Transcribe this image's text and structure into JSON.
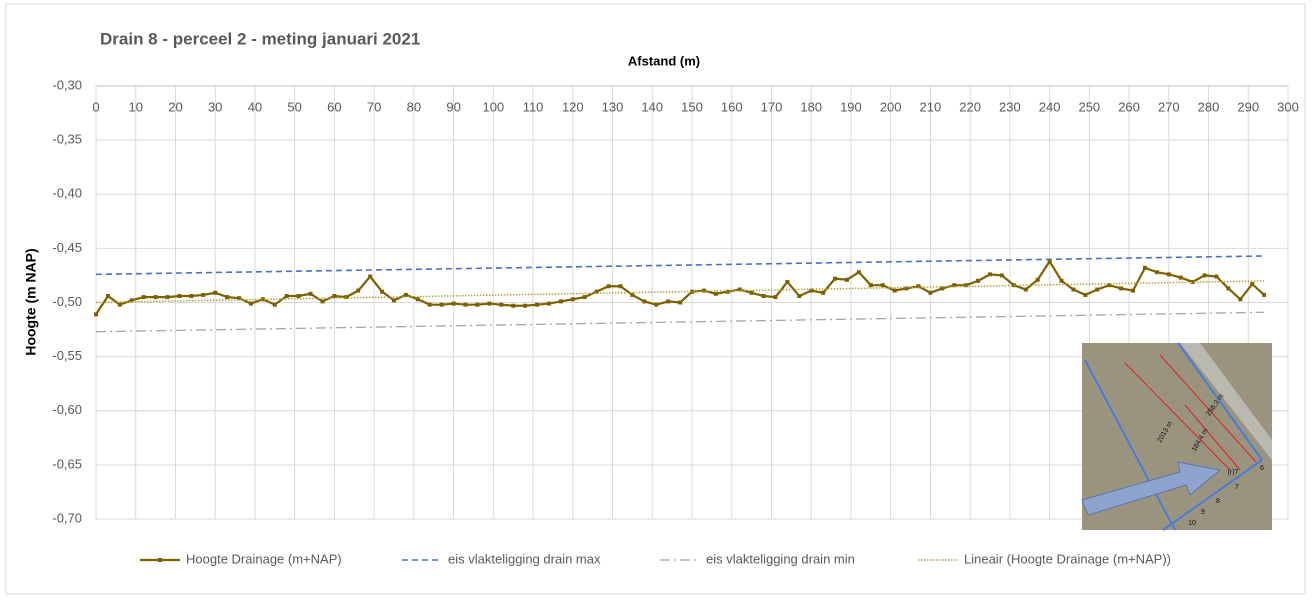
{
  "chart_data": {
    "type": "line",
    "title": "Drain 8 - perceel 2 - meting januari 2021",
    "x_label": "Afstand (m)",
    "y_label": "Hoogte (m NAP)",
    "xlim": [
      0,
      300
    ],
    "xticks": [
      0,
      10,
      20,
      30,
      40,
      50,
      60,
      70,
      80,
      90,
      100,
      110,
      120,
      130,
      140,
      150,
      160,
      170,
      180,
      190,
      200,
      210,
      220,
      230,
      240,
      250,
      260,
      270,
      280,
      290,
      300
    ],
    "ylim": [
      -0.7,
      -0.3
    ],
    "yticks": [
      {
        "value": -0.3,
        "label": "-0,30"
      },
      {
        "value": -0.35,
        "label": "-0,35"
      },
      {
        "value": -0.4,
        "label": "-0,40"
      },
      {
        "value": -0.45,
        "label": "-0,45"
      },
      {
        "value": -0.5,
        "label": "-0,50"
      },
      {
        "value": -0.55,
        "label": "-0,55"
      },
      {
        "value": -0.6,
        "label": "-0,60"
      },
      {
        "value": -0.65,
        "label": "-0,65"
      },
      {
        "value": -0.7,
        "label": "-0,70"
      }
    ],
    "grid": true,
    "legend": "bottom",
    "series": [
      {
        "name": "Hoogte Drainage (m+NAP)",
        "color": "#7f6000",
        "line_style": "solid",
        "marker": "square",
        "x": [
          0,
          3,
          6,
          9,
          12,
          15,
          18,
          21,
          24,
          27,
          30,
          33,
          36,
          39,
          42,
          45,
          48,
          51,
          54,
          57,
          60,
          63,
          66,
          69,
          72,
          75,
          78,
          81,
          84,
          87,
          90,
          93,
          96,
          99,
          102,
          105,
          108,
          111,
          114,
          117,
          120,
          123,
          126,
          129,
          132,
          135,
          138,
          141,
          144,
          147,
          150,
          153,
          156,
          159,
          162,
          165,
          168,
          171,
          174,
          177,
          180,
          183,
          186,
          189,
          192,
          195,
          198,
          201,
          204,
          207,
          210,
          213,
          216,
          219,
          222,
          225,
          228,
          231,
          234,
          237,
          240,
          243,
          246,
          249,
          252,
          255,
          258,
          261,
          264,
          267,
          270,
          273,
          276,
          279,
          282,
          285,
          288,
          291,
          294
        ],
        "values": [
          -0.511,
          -0.494,
          -0.502,
          -0.498,
          -0.495,
          -0.495,
          -0.495,
          -0.494,
          -0.494,
          -0.493,
          -0.491,
          -0.495,
          -0.496,
          -0.501,
          -0.497,
          -0.502,
          -0.494,
          -0.494,
          -0.492,
          -0.499,
          -0.494,
          -0.495,
          -0.489,
          -0.476,
          -0.49,
          -0.498,
          -0.493,
          -0.497,
          -0.502,
          -0.502,
          -0.501,
          -0.502,
          -0.502,
          -0.501,
          -0.502,
          -0.503,
          -0.503,
          -0.502,
          -0.501,
          -0.499,
          -0.497,
          -0.495,
          -0.49,
          -0.485,
          -0.485,
          -0.493,
          -0.499,
          -0.502,
          -0.499,
          -0.5,
          -0.49,
          -0.489,
          -0.492,
          -0.49,
          -0.488,
          -0.491,
          -0.494,
          -0.495,
          -0.481,
          -0.494,
          -0.489,
          -0.491,
          -0.478,
          -0.479,
          -0.472,
          -0.484,
          -0.484,
          -0.489,
          -0.487,
          -0.485,
          -0.491,
          -0.487,
          -0.484,
          -0.484,
          -0.48,
          -0.474,
          -0.475,
          -0.484,
          -0.488,
          -0.479,
          -0.462,
          -0.48,
          -0.488,
          -0.493,
          -0.488,
          -0.484,
          -0.487,
          -0.489,
          -0.468,
          -0.472,
          -0.474,
          -0.477,
          -0.481,
          -0.475,
          -0.476,
          -0.487,
          -0.497,
          -0.483,
          -0.493
        ]
      },
      {
        "name": "eis vlakteligging drain max",
        "color": "#4472c4",
        "line_style": "dashed",
        "x": [
          0,
          294
        ],
        "values": [
          -0.474,
          -0.457
        ]
      },
      {
        "name": "eis vlakteligging drain min",
        "color": "#a5a5a5",
        "line_style": "dash-dot",
        "x": [
          0,
          294
        ],
        "values": [
          -0.527,
          -0.509
        ]
      },
      {
        "name": "Lineair (Hoogte Drainage (m+NAP))",
        "color": "#b5a040",
        "line_style": "dotted",
        "x": [
          0,
          294
        ],
        "values": [
          -0.5,
          -0.48
        ]
      }
    ]
  },
  "inset": {
    "labels": [
      "258,3 m",
      "2013 m",
      "184,4 m",
      "(r)7",
      "6",
      "7",
      "8",
      "9",
      "10"
    ]
  }
}
